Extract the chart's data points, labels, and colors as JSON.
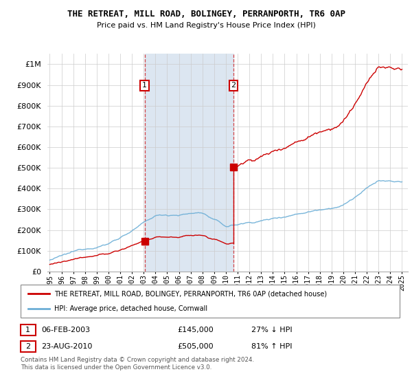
{
  "title": "THE RETREAT, MILL ROAD, BOLINGEY, PERRANPORTH, TR6 0AP",
  "subtitle": "Price paid vs. HM Land Registry's House Price Index (HPI)",
  "legend_line1": "THE RETREAT, MILL ROAD, BOLINGEY, PERRANPORTH, TR6 0AP (detached house)",
  "legend_line2": "HPI: Average price, detached house, Cornwall",
  "transaction1_label": "1",
  "transaction1_date": "06-FEB-2003",
  "transaction1_price": 145000,
  "transaction1_hpi": "27% ↓ HPI",
  "transaction2_label": "2",
  "transaction2_date": "23-AUG-2010",
  "transaction2_price": 505000,
  "transaction2_hpi": "81% ↑ HPI",
  "footer": "Contains HM Land Registry data © Crown copyright and database right 2024.\nThis data is licensed under the Open Government Licence v3.0.",
  "hpi_color": "#6baed6",
  "price_color": "#cc0000",
  "background_color": "#dce6f1",
  "ylim_max": 1050000,
  "transaction1_year": 2003.08,
  "transaction2_year": 2010.64,
  "transaction1_value": 145000,
  "transaction2_value": 505000
}
